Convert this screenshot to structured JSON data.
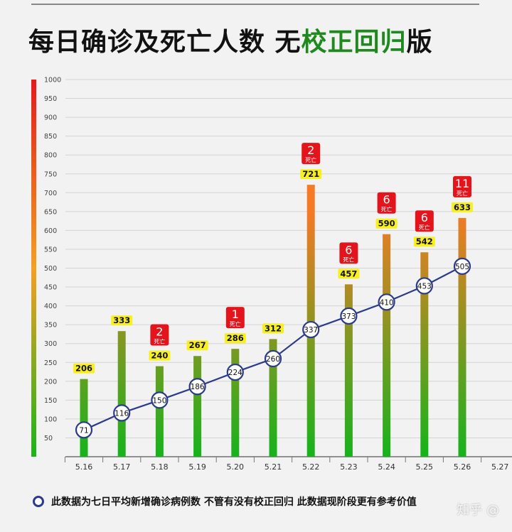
{
  "header": {
    "title_main": "每日确诊及死亡人数 无",
    "title_highlight": "校正回归",
    "title_tail": "版"
  },
  "chart_data": {
    "type": "bar",
    "categories": [
      "5.16",
      "5.17",
      "5.18",
      "5.19",
      "5.20",
      "5.21",
      "5.22",
      "5.23",
      "5.24",
      "5.25",
      "5.26",
      "5.27"
    ],
    "series": [
      {
        "type": "bar",
        "values": [
          206,
          333,
          240,
          267,
          286,
          312,
          721,
          457,
          590,
          542,
          633,
          null
        ]
      },
      {
        "type": "line",
        "name": "此数据为七日平均新增确诊病例数 不管有没有校正回归 此数据现阶段更有参考价值",
        "values": [
          71,
          116,
          150,
          186,
          224,
          260,
          337,
          373,
          410,
          453,
          505,
          null
        ]
      }
    ],
    "deaths": [
      null,
      null,
      2,
      null,
      1,
      null,
      2,
      6,
      6,
      6,
      11,
      null
    ],
    "death_label": "死亡",
    "yticks": [
      50,
      100,
      150,
      200,
      250,
      300,
      350,
      400,
      450,
      500,
      550,
      600,
      650,
      700,
      750,
      800,
      850,
      900,
      950,
      1000
    ],
    "ylim": [
      0,
      1000
    ],
    "grid": true
  },
  "colors": {
    "bar_top": "#f47a26",
    "bar_bottom": "#16b31c",
    "line": "#2b3a8f",
    "value_tag": "#f7ef1e",
    "death_tag": "#e3141b"
  },
  "legend": {
    "text": "此数据为七日平均新增确诊病例数 不管有没有校正回归 此数据现阶段更有参考价值"
  },
  "watermark": {
    "text": "知乎 @"
  }
}
